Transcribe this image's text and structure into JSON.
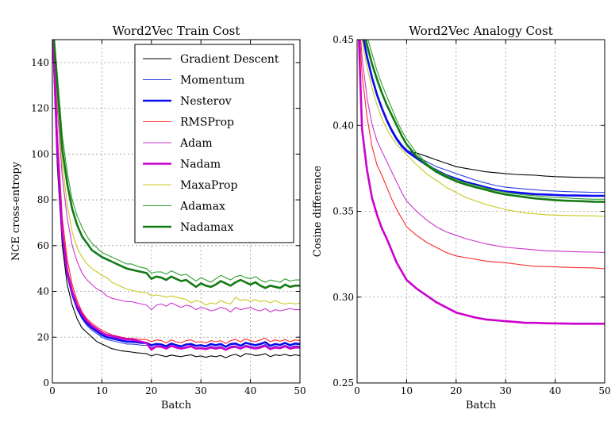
{
  "chart_data": [
    {
      "type": "line",
      "title": "Word2Vec Train Cost",
      "xlabel": "Batch",
      "ylabel": "NCE cross-entropy",
      "xlim": [
        0,
        50
      ],
      "ylim": [
        0,
        150
      ],
      "xticks": [
        "0",
        "10",
        "20",
        "30",
        "40",
        "50"
      ],
      "yticks": [
        "0",
        "20",
        "40",
        "60",
        "80",
        "100",
        "120",
        "140"
      ],
      "grid": true,
      "legend": "top-right",
      "x": [
        0,
        1,
        2,
        3,
        4,
        5,
        6,
        7,
        8,
        9,
        10,
        11,
        12,
        13,
        14,
        15,
        16,
        17,
        18,
        19,
        20,
        21,
        22,
        23,
        24,
        25,
        26,
        27,
        28,
        29,
        30,
        31,
        32,
        33,
        34,
        35,
        36,
        37,
        38,
        39,
        40,
        41,
        42,
        43,
        44,
        45,
        46,
        47,
        48,
        49,
        50
      ],
      "series": [
        {
          "name": "Gradient Descent",
          "color": "#000000",
          "width": "thin",
          "values": [
            160,
            95,
            60,
            43,
            34,
            28,
            24,
            22,
            20,
            18,
            17,
            16,
            15,
            14.5,
            14,
            13.8,
            13.5,
            13.2,
            13,
            12.8,
            11.8,
            12.5,
            12,
            11.5,
            12.2,
            11.8,
            11.5,
            12,
            12.3,
            11.5,
            11.8,
            11.2,
            11.8,
            11.5,
            12,
            11,
            12,
            12.5,
            11.5,
            12.8,
            12.5,
            12,
            12.2,
            12.8,
            11.5,
            12.3,
            12,
            12.5,
            11.8,
            12.3,
            12
          ]
        },
        {
          "name": "Momentum",
          "color": "#2b3fe6",
          "width": "thin",
          "values": [
            160,
            100,
            64,
            47,
            38,
            32,
            28,
            25,
            23,
            21.5,
            20,
            19,
            18.5,
            18,
            17.5,
            17,
            17,
            16.8,
            16.5,
            16.5,
            15.5,
            16,
            15.8,
            15,
            16.2,
            15.5,
            15,
            15.8,
            16,
            15.2,
            15.5,
            15,
            16,
            15.5,
            16,
            14.8,
            16,
            16.2,
            15.2,
            16.5,
            16,
            15.5,
            16,
            16.8,
            15.2,
            16,
            15.6,
            16.5,
            15.5,
            16.2,
            16
          ]
        },
        {
          "name": "Nesterov",
          "color": "#0a0af0",
          "width": "thick",
          "values": [
            160,
            101,
            65,
            48,
            39,
            33,
            29,
            26,
            24,
            22.5,
            21,
            20,
            19.5,
            19,
            18.5,
            18,
            18,
            17.8,
            17.5,
            17.5,
            16.5,
            17,
            16.8,
            16,
            17.2,
            16.5,
            16,
            16.8,
            17,
            16.2,
            16.5,
            16,
            17,
            16.5,
            17,
            15.8,
            17,
            17.2,
            16.2,
            17.5,
            17,
            16.5,
            17,
            17.8,
            16.2,
            17,
            16.6,
            17.5,
            16.5,
            17.2,
            17
          ]
        },
        {
          "name": "RMSProp",
          "color": "#ff2a2a",
          "width": "thin",
          "values": [
            160,
            110,
            72,
            54,
            43,
            36,
            31,
            28,
            26,
            24.5,
            23,
            22,
            21,
            20.5,
            20,
            19.5,
            19.5,
            19.2,
            19,
            19,
            18,
            18.8,
            18.5,
            17.5,
            18.8,
            18,
            17.5,
            18.5,
            18.8,
            17.8,
            18,
            17.5,
            18.5,
            18,
            18.5,
            17.2,
            18.5,
            19,
            18,
            19.2,
            18.5,
            18,
            18.8,
            19.5,
            18,
            18.8,
            18.2,
            19,
            18,
            18.8,
            18.5
          ]
        },
        {
          "name": "Adam",
          "color": "#cc33cc",
          "width": "thin",
          "values": [
            160,
            120,
            90,
            72,
            60,
            53,
            48,
            45,
            43,
            41,
            40,
            38,
            37,
            36.5,
            36,
            35.5,
            35.5,
            35,
            34.5,
            34,
            32,
            34,
            34.5,
            33.5,
            35,
            34,
            33,
            34,
            33.5,
            32,
            33,
            32.5,
            31.5,
            32,
            33,
            32.5,
            31,
            33,
            32,
            32.5,
            33,
            32,
            31.5,
            32.5,
            31,
            32,
            31.5,
            32,
            32.5,
            32,
            32
          ]
        },
        {
          "name": "Nadam",
          "color": "#cc00cc",
          "width": "thick",
          "values": [
            160,
            103,
            66,
            49,
            40,
            34,
            30,
            27,
            25,
            23.5,
            22,
            21,
            20.5,
            20,
            19.5,
            19,
            19,
            18.5,
            18,
            17.5,
            14.5,
            16,
            15.8,
            15,
            16.2,
            15.5,
            15,
            15.5,
            16,
            15,
            15.2,
            14.8,
            15.5,
            15,
            15.5,
            14.5,
            15.5,
            15.8,
            15,
            16,
            15.5,
            15,
            15.5,
            16.2,
            14.8,
            15.5,
            15.2,
            16,
            15,
            15.5,
            15.5
          ]
        },
        {
          "name": "MaxaProp",
          "color": "#c8c820",
          "width": "thin",
          "values": [
            160,
            125,
            96,
            78,
            66,
            59,
            55,
            52,
            50,
            48.5,
            47,
            46,
            44,
            43,
            42,
            41,
            40.5,
            40,
            39.5,
            39.5,
            38,
            38.5,
            38,
            37.5,
            38,
            37.5,
            37,
            36.5,
            35,
            36,
            35.5,
            34,
            35,
            34.5,
            36,
            35,
            34.5,
            37.5,
            36,
            36.5,
            35.5,
            36.5,
            35.5,
            36,
            35,
            36,
            35,
            34.5,
            35,
            34.5,
            35
          ]
        },
        {
          "name": "Adamax",
          "color": "#2e9e2e",
          "width": "thin",
          "values": [
            160,
            135,
            108,
            92,
            80,
            73,
            68,
            64,
            61,
            59,
            57,
            56,
            55,
            54,
            53,
            52,
            52,
            51,
            50.5,
            50,
            48,
            48.5,
            48.5,
            47.5,
            49,
            48,
            47,
            47.5,
            46,
            44.5,
            46,
            45,
            44,
            45.5,
            47,
            46,
            45,
            46.5,
            47,
            46,
            45.5,
            46.5,
            45,
            44,
            45,
            44.5,
            44,
            45.5,
            44.5,
            45,
            45
          ]
        },
        {
          "name": "Nadamax",
          "color": "#137a13",
          "width": "thick",
          "values": [
            160,
            130,
            102,
            87,
            76,
            69,
            64,
            61,
            58,
            56.5,
            55,
            54,
            53,
            52,
            51,
            50,
            49.5,
            49,
            48.5,
            48,
            45.5,
            46.5,
            46,
            45,
            46.5,
            45.5,
            44.5,
            45,
            43.5,
            42,
            43.5,
            42.5,
            42,
            43,
            44.5,
            43.5,
            42.5,
            44,
            45,
            44,
            43,
            44,
            42.5,
            41.5,
            42.5,
            42,
            41.5,
            43,
            42,
            42.5,
            42.5
          ]
        }
      ]
    },
    {
      "type": "line",
      "title": "Word2Vec Analogy Cost",
      "xlabel": "Batch",
      "ylabel": "Cosine difference",
      "xlim": [
        0,
        50
      ],
      "ylim": [
        0.25,
        0.45
      ],
      "xticks": [
        "0",
        "10",
        "20",
        "30",
        "40",
        "50"
      ],
      "yticks": [
        "0.25",
        "0.30",
        "0.35",
        "0.40",
        "0.45"
      ],
      "grid": true,
      "x": [
        0,
        1,
        2,
        3,
        4,
        5,
        6,
        7,
        8,
        9,
        10,
        12,
        14,
        16,
        18,
        20,
        22,
        24,
        26,
        28,
        30,
        32,
        34,
        36,
        38,
        40,
        42,
        44,
        46,
        48,
        50
      ],
      "series": [
        {
          "name": "Gradient Descent",
          "color": "#000000",
          "width": "thin",
          "values": [
            0.48,
            0.455,
            0.44,
            0.428,
            0.418,
            0.41,
            0.403,
            0.397,
            0.392,
            0.388,
            0.385,
            0.384,
            0.382,
            0.38,
            0.378,
            0.376,
            0.375,
            0.374,
            0.373,
            0.3725,
            0.372,
            0.3715,
            0.3712,
            0.371,
            0.3705,
            0.3702,
            0.37,
            0.3698,
            0.3697,
            0.3696,
            0.3695
          ]
        },
        {
          "name": "Momentum",
          "color": "#2b3fe6",
          "width": "thin",
          "values": [
            0.48,
            0.456,
            0.441,
            0.429,
            0.419,
            0.411,
            0.404,
            0.398,
            0.393,
            0.389,
            0.386,
            0.382,
            0.379,
            0.376,
            0.374,
            0.372,
            0.37,
            0.368,
            0.3665,
            0.365,
            0.364,
            0.3635,
            0.363,
            0.3625,
            0.362,
            0.3618,
            0.3615,
            0.3613,
            0.3612,
            0.361,
            0.361
          ]
        },
        {
          "name": "Nesterov",
          "color": "#0a0af0",
          "width": "thick",
          "values": [
            0.48,
            0.455,
            0.44,
            0.428,
            0.418,
            0.41,
            0.403,
            0.397,
            0.392,
            0.388,
            0.385,
            0.381,
            0.377,
            0.374,
            0.371,
            0.369,
            0.367,
            0.3655,
            0.364,
            0.3625,
            0.3615,
            0.361,
            0.3605,
            0.36,
            0.3598,
            0.3595,
            0.3593,
            0.3592,
            0.3591,
            0.359,
            0.359
          ]
        },
        {
          "name": "RMSProp",
          "color": "#ff2a2a",
          "width": "thin",
          "values": [
            0.48,
            0.43,
            0.405,
            0.388,
            0.377,
            0.371,
            0.364,
            0.357,
            0.351,
            0.346,
            0.341,
            0.336,
            0.332,
            0.329,
            0.326,
            0.324,
            0.323,
            0.322,
            0.321,
            0.3205,
            0.32,
            0.3193,
            0.3185,
            0.318,
            0.3178,
            0.3176,
            0.3174,
            0.3172,
            0.3171,
            0.317,
            0.3165
          ]
        },
        {
          "name": "Adam",
          "color": "#cc33cc",
          "width": "thin",
          "values": [
            0.48,
            0.44,
            0.416,
            0.401,
            0.391,
            0.385,
            0.379,
            0.373,
            0.367,
            0.361,
            0.356,
            0.35,
            0.345,
            0.341,
            0.338,
            0.336,
            0.334,
            0.3325,
            0.331,
            0.33,
            0.329,
            0.3285,
            0.328,
            0.3275,
            0.327,
            0.3268,
            0.3266,
            0.3264,
            0.3263,
            0.3262,
            0.326
          ]
        },
        {
          "name": "Nadam",
          "color": "#cc00cc",
          "width": "thick",
          "values": [
            0.48,
            0.398,
            0.374,
            0.358,
            0.348,
            0.34,
            0.334,
            0.327,
            0.32,
            0.315,
            0.31,
            0.305,
            0.301,
            0.297,
            0.294,
            0.291,
            0.2895,
            0.288,
            0.287,
            0.2865,
            0.286,
            0.2855,
            0.285,
            0.285,
            0.2848,
            0.2847,
            0.2846,
            0.2845,
            0.2845,
            0.2845,
            0.2845
          ]
        },
        {
          "name": "MaxaProp",
          "color": "#c8c820",
          "width": "thin",
          "values": [
            0.48,
            0.45,
            0.434,
            0.422,
            0.412,
            0.404,
            0.398,
            0.393,
            0.389,
            0.386,
            0.383,
            0.377,
            0.372,
            0.368,
            0.364,
            0.361,
            0.358,
            0.356,
            0.354,
            0.3525,
            0.351,
            0.35,
            0.349,
            0.3485,
            0.348,
            0.3478,
            0.3476,
            0.3475,
            0.3474,
            0.3473,
            0.347
          ]
        },
        {
          "name": "Adamax",
          "color": "#2e9e2e",
          "width": "thin",
          "values": [
            0.48,
            0.465,
            0.452,
            0.442,
            0.432,
            0.424,
            0.417,
            0.41,
            0.403,
            0.397,
            0.392,
            0.384,
            0.378,
            0.374,
            0.371,
            0.3685,
            0.3665,
            0.365,
            0.3635,
            0.362,
            0.361,
            0.3602,
            0.3595,
            0.359,
            0.3585,
            0.358,
            0.3578,
            0.3575,
            0.3572,
            0.357,
            0.357
          ]
        },
        {
          "name": "Nadamax",
          "color": "#137a13",
          "width": "thick",
          "values": [
            0.48,
            0.46,
            0.447,
            0.436,
            0.427,
            0.419,
            0.412,
            0.406,
            0.4,
            0.394,
            0.389,
            0.382,
            0.377,
            0.373,
            0.37,
            0.3675,
            0.3655,
            0.364,
            0.3625,
            0.361,
            0.3598,
            0.359,
            0.3582,
            0.3575,
            0.357,
            0.3565,
            0.3562,
            0.356,
            0.3558,
            0.3556,
            0.3555
          ]
        }
      ]
    }
  ]
}
